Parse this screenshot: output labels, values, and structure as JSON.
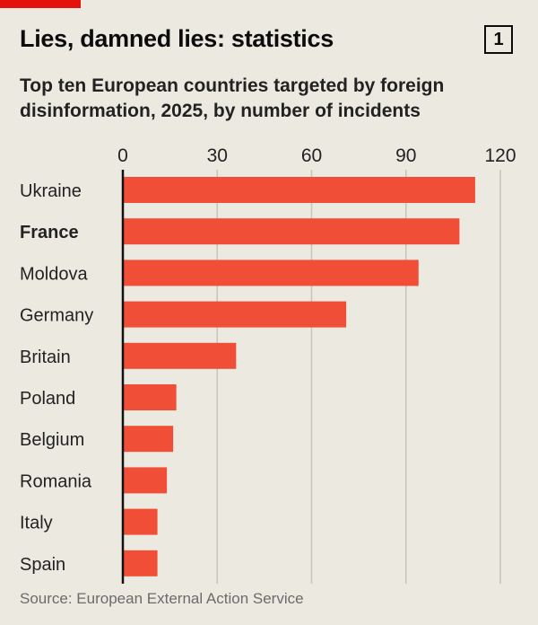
{
  "title": "Lies, damned lies: statistics",
  "badge": "1",
  "subtitle": "Top ten European countries targeted by foreign disinformation, 2025, by number of incidents",
  "source": "Source: European External Action Service",
  "colors": {
    "bar": "#f04e37",
    "accent": "#e3120b",
    "background": "#ebe9e0",
    "grid": "#c6c4bb"
  },
  "chart_data": {
    "type": "bar",
    "orientation": "horizontal",
    "title": "Top ten European countries targeted by foreign disinformation, 2025, by number of incidents",
    "categories": [
      "Ukraine",
      "France",
      "Moldova",
      "Germany",
      "Britain",
      "Poland",
      "Belgium",
      "Romania",
      "Italy",
      "Spain"
    ],
    "highlight": "France",
    "values": [
      112,
      107,
      94,
      71,
      36,
      17,
      16,
      14,
      11,
      11
    ],
    "xlim": [
      0,
      120
    ],
    "ticks": [
      0,
      30,
      60,
      90,
      120
    ],
    "grid": true,
    "axis_position": "top"
  }
}
